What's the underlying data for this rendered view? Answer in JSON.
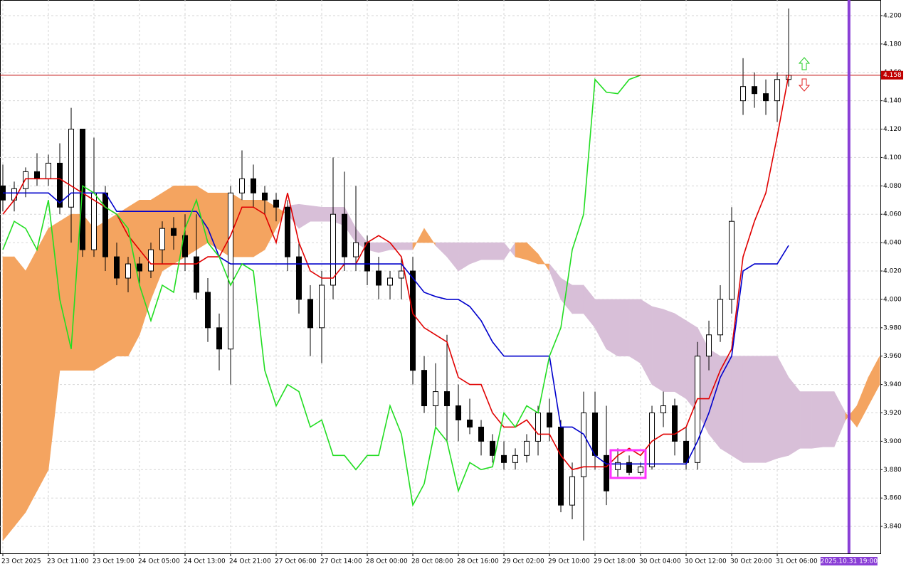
{
  "chart_data": {
    "type": "candlestick",
    "xlim": [
      -0.25,
      77.06
    ],
    "ylim": [
      3.821,
      4.211
    ],
    "grid": true,
    "xticks": [
      {
        "value": 0,
        "label": "23 Oct 2025"
      },
      {
        "value": 4,
        "label": "23 Oct 11:00"
      },
      {
        "value": 8,
        "label": "23 Oct 19:00"
      },
      {
        "value": 12,
        "label": "24 Oct 05:00"
      },
      {
        "value": 16,
        "label": "24 Oct 13:00"
      },
      {
        "value": 20,
        "label": "24 Oct 21:00"
      },
      {
        "value": 24,
        "label": "27 Oct 06:00"
      },
      {
        "value": 28,
        "label": "27 Oct 14:00"
      },
      {
        "value": 32,
        "label": "28 Oct 00:00"
      },
      {
        "value": 36,
        "label": "28 Oct 08:00"
      },
      {
        "value": 40,
        "label": "28 Oct 16:00"
      },
      {
        "value": 44,
        "label": "29 Oct 02:00"
      },
      {
        "value": 48,
        "label": "29 Oct 10:00"
      },
      {
        "value": 52,
        "label": "29 Oct 18:00"
      },
      {
        "value": 56,
        "label": "30 Oct 04:00"
      },
      {
        "value": 60,
        "label": "30 Oct 12:00"
      },
      {
        "value": 64,
        "label": "30 Oct 20:00"
      },
      {
        "value": 68,
        "label": "31 Oct 06:00"
      }
    ],
    "yticks": [
      {
        "value": 3.84,
        "label": "3.840"
      },
      {
        "value": 3.86,
        "label": "3.860"
      },
      {
        "value": 3.88,
        "label": "3.880"
      },
      {
        "value": 3.9,
        "label": "3.900"
      },
      {
        "value": 3.92,
        "label": "3.920"
      },
      {
        "value": 3.94,
        "label": "3.940"
      },
      {
        "value": 3.96,
        "label": "3.960"
      },
      {
        "value": 3.98,
        "label": "3.980"
      },
      {
        "value": 4.0,
        "label": "4.000"
      },
      {
        "value": 4.02,
        "label": "4.020"
      },
      {
        "value": 4.04,
        "label": "4.040"
      },
      {
        "value": 4.06,
        "label": "4.060"
      },
      {
        "value": 4.08,
        "label": "4.080"
      },
      {
        "value": 4.1,
        "label": "4.100"
      },
      {
        "value": 4.12,
        "label": "4.120"
      },
      {
        "value": 4.14,
        "label": "4.140"
      },
      {
        "value": 4.16,
        "label": "4.160"
      },
      {
        "value": 4.18,
        "label": "4.180"
      },
      {
        "value": 4.2,
        "label": "4.200"
      }
    ],
    "ohlc": [
      [
        4.08,
        4.095,
        4.062,
        4.07
      ],
      [
        4.07,
        4.083,
        4.062,
        4.078
      ],
      [
        4.078,
        4.093,
        4.072,
        4.09
      ],
      [
        4.09,
        4.103,
        4.08,
        4.085
      ],
      [
        4.085,
        4.102,
        4.08,
        4.096
      ],
      [
        4.096,
        4.11,
        4.06,
        4.065
      ],
      [
        4.065,
        4.135,
        4.04,
        4.12
      ],
      [
        4.12,
        4.12,
        4.03,
        4.035
      ],
      [
        4.035,
        4.114,
        4.03,
        4.075
      ],
      [
        4.075,
        4.08,
        4.02,
        4.03
      ],
      [
        4.03,
        4.04,
        4.01,
        4.015
      ],
      [
        4.015,
        4.03,
        4.005,
        4.025
      ],
      [
        4.025,
        4.03,
        4.01,
        4.02
      ],
      [
        4.02,
        4.04,
        4.015,
        4.035
      ],
      [
        4.035,
        4.055,
        4.025,
        4.05
      ],
      [
        4.05,
        4.058,
        4.035,
        4.045
      ],
      [
        4.045,
        4.06,
        4.02,
        4.03
      ],
      [
        4.03,
        4.06,
        4.0,
        4.005
      ],
      [
        4.005,
        4.015,
        3.97,
        3.98
      ],
      [
        3.98,
        3.99,
        3.95,
        3.965
      ],
      [
        3.965,
        4.08,
        3.94,
        4.075
      ],
      [
        4.075,
        4.105,
        4.07,
        4.085
      ],
      [
        4.085,
        4.095,
        4.065,
        4.075
      ],
      [
        4.075,
        4.08,
        4.06,
        4.07
      ],
      [
        4.07,
        4.075,
        4.055,
        4.065
      ],
      [
        4.065,
        4.07,
        4.02,
        4.03
      ],
      [
        4.03,
        4.04,
        3.99,
        4.0
      ],
      [
        4.0,
        4.01,
        3.96,
        3.98
      ],
      [
        3.98,
        4.02,
        3.955,
        4.01
      ],
      [
        4.01,
        4.1,
        4.0,
        4.06
      ],
      [
        4.06,
        4.09,
        4.02,
        4.03
      ],
      [
        4.03,
        4.08,
        4.02,
        4.04
      ],
      [
        4.04,
        4.045,
        4.01,
        4.02
      ],
      [
        4.02,
        4.03,
        4.0,
        4.01
      ],
      [
        4.01,
        4.02,
        4.0,
        4.015
      ],
      [
        4.015,
        4.03,
        4.0,
        4.02
      ],
      [
        4.02,
        4.03,
        3.94,
        3.95
      ],
      [
        3.95,
        3.96,
        3.92,
        3.925
      ],
      [
        3.925,
        3.955,
        3.91,
        3.935
      ],
      [
        3.935,
        3.975,
        3.9,
        3.925
      ],
      [
        3.925,
        3.94,
        3.9,
        3.915
      ],
      [
        3.915,
        3.93,
        3.905,
        3.91
      ],
      [
        3.91,
        3.915,
        3.89,
        3.9
      ],
      [
        3.9,
        3.905,
        3.885,
        3.89
      ],
      [
        3.89,
        3.9,
        3.88,
        3.885
      ],
      [
        3.885,
        3.895,
        3.88,
        3.89
      ],
      [
        3.89,
        3.905,
        3.885,
        3.9
      ],
      [
        3.9,
        3.925,
        3.89,
        3.92
      ],
      [
        3.92,
        3.93,
        3.9,
        3.91
      ],
      [
        3.91,
        3.915,
        3.85,
        3.855
      ],
      [
        3.855,
        3.885,
        3.845,
        3.875
      ],
      [
        3.875,
        3.935,
        3.83,
        3.92
      ],
      [
        3.92,
        3.935,
        3.88,
        3.89
      ],
      [
        3.89,
        3.925,
        3.855,
        3.865
      ],
      [
        3.88,
        3.895,
        3.875,
        3.885
      ],
      [
        3.885,
        3.89,
        3.876,
        3.878
      ],
      [
        3.878,
        3.885,
        3.876,
        3.882
      ],
      [
        3.882,
        3.925,
        3.88,
        3.92
      ],
      [
        3.92,
        3.935,
        3.91,
        3.925
      ],
      [
        3.925,
        3.93,
        3.89,
        3.9
      ],
      [
        3.9,
        3.91,
        3.88,
        3.885
      ],
      [
        3.885,
        3.97,
        3.88,
        3.96
      ],
      [
        3.96,
        3.985,
        3.95,
        3.975
      ],
      [
        3.975,
        4.01,
        3.97,
        4.0
      ],
      [
        4.0,
        4.065,
        3.99,
        4.055
      ],
      [
        4.14,
        4.17,
        4.13,
        4.15
      ],
      [
        4.15,
        4.16,
        4.135,
        4.145
      ],
      [
        4.145,
        4.155,
        4.13,
        4.14
      ],
      [
        4.14,
        4.16,
        4.125,
        4.155
      ],
      [
        4.155,
        4.205,
        4.15,
        4.158
      ]
    ],
    "cloud": {
      "up_color": "#f4a460",
      "down_color": "#d8bfd8",
      "span_a": [
        4.03,
        4.03,
        4.02,
        4.035,
        4.05,
        4.055,
        4.06,
        4.06,
        4.05,
        4.055,
        4.06,
        4.065,
        4.07,
        4.07,
        4.075,
        4.08,
        4.08,
        4.08,
        4.075,
        4.075,
        4.075,
        4.07,
        4.07,
        4.07,
        4.065,
        4.06,
        4.05,
        4.055,
        4.055,
        4.055,
        4.052,
        4.04,
        4.035,
        4.033,
        4.035,
        4.035,
        4.035,
        4.05,
        4.038,
        4.03,
        4.02,
        4.025,
        4.028,
        4.028,
        4.028,
        4.04,
        4.04,
        4.032,
        4.02,
        4.0,
        3.99,
        3.99,
        3.98,
        3.965,
        3.96,
        3.96,
        3.955,
        3.94,
        3.935,
        3.935,
        3.93,
        3.92,
        3.905,
        3.895,
        3.89,
        3.885,
        3.885,
        3.885,
        3.888,
        3.89,
        3.895,
        3.895,
        3.896,
        3.896,
        3.915,
        3.925,
        3.945,
        3.96
      ],
      "span_b": [
        3.83,
        3.84,
        3.85,
        3.865,
        3.88,
        3.95,
        3.95,
        3.95,
        3.95,
        3.955,
        3.96,
        3.96,
        3.975,
        4.0,
        4.02,
        4.025,
        4.03,
        4.035,
        4.04,
        4.035,
        4.03,
        4.03,
        4.03,
        4.035,
        4.05,
        4.066,
        4.067,
        4.066,
        4.065,
        4.065,
        4.065,
        4.05,
        4.04,
        4.04,
        4.04,
        4.04,
        4.04,
        4.04,
        4.04,
        4.04,
        4.04,
        4.04,
        4.04,
        4.04,
        4.04,
        4.03,
        4.028,
        4.025,
        4.025,
        4.015,
        4.01,
        4.01,
        4.0,
        4.0,
        4.0,
        4.0,
        4.0,
        3.995,
        3.993,
        3.99,
        3.985,
        3.98,
        3.965,
        3.96,
        3.96,
        3.96,
        3.96,
        3.96,
        3.96,
        3.945,
        3.935,
        3.935,
        3.935,
        3.935,
        3.92,
        3.91,
        3.925,
        3.94
      ]
    },
    "lines": [
      {
        "color": "#e00000",
        "values": [
          4.06,
          4.07,
          4.085,
          4.085,
          4.085,
          4.085,
          4.08,
          4.075,
          4.07,
          4.065,
          4.06,
          4.045,
          4.035,
          4.025,
          4.025,
          4.025,
          4.025,
          4.025,
          4.03,
          4.03,
          4.045,
          4.065,
          4.065,
          4.06,
          4.04,
          4.075,
          4.04,
          4.02,
          4.015,
          4.015,
          4.025,
          4.025,
          4.04,
          4.045,
          4.04,
          4.03,
          3.99,
          3.98,
          3.975,
          3.97,
          3.945,
          3.94,
          3.94,
          3.92,
          3.91,
          3.91,
          3.915,
          3.905,
          3.905,
          3.89,
          3.88,
          3.882,
          3.882,
          3.882,
          3.89,
          3.895,
          3.89,
          3.9,
          3.905,
          3.905,
          3.91,
          3.93,
          3.93,
          3.95,
          3.965,
          4.03,
          4.055,
          4.075,
          4.115,
          4.158
        ]
      },
      {
        "color": "#0000cc",
        "values": [
          4.075,
          4.075,
          4.075,
          4.075,
          4.075,
          4.068,
          4.075,
          4.075,
          4.075,
          4.075,
          4.062,
          4.062,
          4.062,
          4.062,
          4.062,
          4.062,
          4.062,
          4.062,
          4.05,
          4.03,
          4.025,
          4.025,
          4.025,
          4.025,
          4.025,
          4.025,
          4.025,
          4.025,
          4.025,
          4.025,
          4.025,
          4.025,
          4.025,
          4.025,
          4.025,
          4.025,
          4.015,
          4.005,
          4.002,
          4.0,
          4.0,
          3.995,
          3.985,
          3.97,
          3.96,
          3.96,
          3.96,
          3.96,
          3.96,
          3.91,
          3.91,
          3.905,
          3.89,
          3.884,
          3.884,
          3.884,
          3.884,
          3.884,
          3.884,
          3.884,
          3.884,
          3.9,
          3.92,
          3.945,
          3.96,
          4.02,
          4.025,
          4.025,
          4.025,
          4.038
        ]
      },
      {
        "color": "#22dd22",
        "values": [
          4.035,
          4.055,
          4.05,
          4.035,
          4.07,
          4.0,
          3.965,
          4.08,
          4.075,
          4.065,
          4.06,
          4.05,
          4.01,
          3.985,
          4.01,
          4.005,
          4.05,
          4.07,
          4.04,
          4.03,
          4.01,
          4.025,
          4.02,
          3.95,
          3.925,
          3.94,
          3.935,
          3.91,
          3.915,
          3.89,
          3.89,
          3.88,
          3.89,
          3.89,
          3.925,
          3.905,
          3.855,
          3.87,
          3.91,
          3.9,
          3.865,
          3.885,
          3.88,
          3.882,
          3.92,
          3.91,
          3.925,
          3.92,
          3.96,
          3.98,
          4.035,
          4.06,
          4.155,
          4.146,
          4.145,
          4.155,
          4.158,
          null,
          null,
          null,
          null,
          null,
          null,
          null,
          null,
          null,
          null,
          null,
          null,
          null
        ]
      }
    ],
    "price_line": {
      "value": 4.158,
      "label": "4.158",
      "color": "#c00000"
    },
    "time_marker": {
      "value": 74.3,
      "label": "2025.10.31 19:00",
      "color": "#8a3fd6"
    }
  }
}
